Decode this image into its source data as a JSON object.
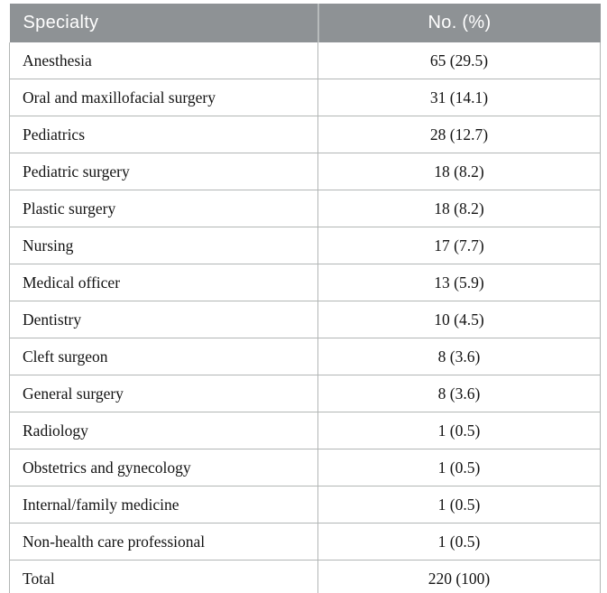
{
  "table": {
    "columns": [
      {
        "label": "Specialty"
      },
      {
        "label": "No. (%)"
      }
    ],
    "rows": [
      {
        "specialty": "Anesthesia",
        "count": "65 (29.5)"
      },
      {
        "specialty": "Oral and maxillofacial surgery",
        "count": "31 (14.1)"
      },
      {
        "specialty": "Pediatrics",
        "count": "28 (12.7)"
      },
      {
        "specialty": "Pediatric surgery",
        "count": "18 (8.2)"
      },
      {
        "specialty": "Plastic surgery",
        "count": "18 (8.2)"
      },
      {
        "specialty": "Nursing",
        "count": "17 (7.7)"
      },
      {
        "specialty": "Medical officer",
        "count": "13 (5.9)"
      },
      {
        "specialty": "Dentistry",
        "count": "10 (4.5)"
      },
      {
        "specialty": "Cleft surgeon",
        "count": "8 (3.6)"
      },
      {
        "specialty": "General surgery",
        "count": "8 (3.6)"
      },
      {
        "specialty": "Radiology",
        "count": "1 (0.5)"
      },
      {
        "specialty": "Obstetrics and gynecology",
        "count": "1 (0.5)"
      },
      {
        "specialty": "Internal/family medicine",
        "count": "1 (0.5)"
      },
      {
        "specialty": "Non-health care professional",
        "count": "1 (0.5)"
      }
    ],
    "total_row": {
      "specialty": "Total",
      "count": "220 (100)"
    }
  },
  "colors": {
    "header_bg": "#8e9295",
    "header_text": "#ffffff",
    "header_divider": "#b7bbbb",
    "grid_line": "#b2b6b5",
    "bottom_rule": "#9fa5a2",
    "body_text": "#131313"
  }
}
